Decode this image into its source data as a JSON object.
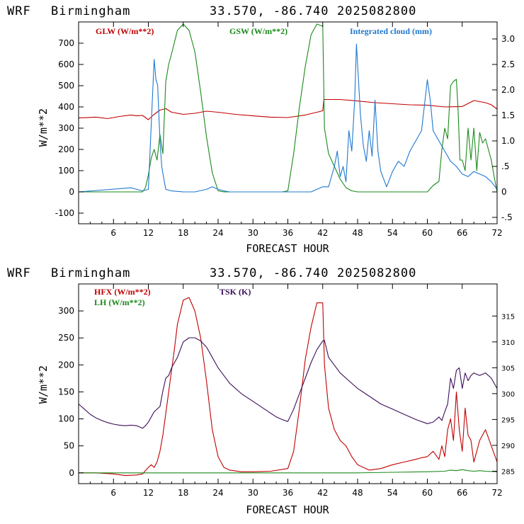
{
  "colors": {
    "red": "#c00000",
    "green": "#1a8a1a",
    "blue": "#1f78d0",
    "purple": "#3b0f5a",
    "axis": "#000000"
  },
  "chart_data": [
    {
      "type": "line",
      "title": {
        "model": "WRF",
        "site": "Birmingham",
        "coords": "33.570, -86.740",
        "run": "2025082800"
      },
      "xlabel": "FORECAST HOUR",
      "ylabel": "W/m**2",
      "x_range": [
        0,
        72
      ],
      "x_ticks": [
        6,
        12,
        18,
        24,
        30,
        36,
        42,
        48,
        54,
        60,
        66,
        72
      ],
      "y_range": [
        -150,
        800
      ],
      "y_ticks": [
        -100,
        0,
        100,
        200,
        300,
        400,
        500,
        600,
        700
      ],
      "y2_range": [
        -0.625,
        3.333
      ],
      "y2_ticks": [
        -0.5,
        0,
        0.5,
        1.0,
        1.5,
        2.0,
        2.5,
        3.0
      ],
      "y2_tick_labels": [
        "-.5",
        "0",
        ".5",
        "1.0",
        "1.5",
        "2.0",
        "2.5",
        "3.0"
      ],
      "legend": [
        "GLW (W/m**2)",
        "GSW (W/m**2)",
        "Integrated cloud (mm)"
      ],
      "series": [
        {
          "name": "GLW (W/m**2)",
          "color_key": "red",
          "axis": "left",
          "x": [
            0,
            3,
            5,
            7,
            9,
            10,
            11,
            12,
            13,
            14,
            15,
            16,
            18,
            20,
            22,
            24,
            27,
            30,
            33,
            36,
            39,
            41,
            42,
            42.2,
            45,
            48,
            51,
            54,
            57,
            60,
            63,
            66,
            68,
            70,
            71,
            72
          ],
          "y": [
            348,
            352,
            345,
            355,
            362,
            358,
            360,
            340,
            365,
            385,
            392,
            375,
            365,
            370,
            380,
            375,
            365,
            358,
            352,
            350,
            362,
            375,
            382,
            435,
            435,
            428,
            420,
            415,
            410,
            408,
            400,
            402,
            430,
            420,
            410,
            390
          ]
        },
        {
          "name": "GSW (W/m**2)",
          "color_key": "green",
          "axis": "left",
          "x": [
            0,
            11,
            11.5,
            12,
            12.5,
            13,
            13.5,
            14,
            14.5,
            15,
            15.5,
            16,
            17,
            18,
            19,
            20,
            21,
            22,
            23,
            24,
            25,
            35,
            36,
            37,
            38,
            39,
            40,
            41,
            42,
            42.3,
            43,
            44,
            45,
            46,
            47,
            48,
            60,
            61,
            62,
            62.5,
            63,
            63.5,
            64,
            64.5,
            65,
            65.3,
            65.6,
            66,
            66.5,
            67,
            67.5,
            68,
            68.5,
            69,
            69.5,
            70,
            70.5,
            71,
            71.5,
            72
          ],
          "y": [
            0,
            0,
            20,
            80,
            160,
            200,
            150,
            270,
            180,
            520,
            600,
            650,
            760,
            790,
            760,
            660,
            470,
            260,
            90,
            5,
            0,
            0,
            5,
            180,
            400,
            590,
            740,
            790,
            780,
            300,
            180,
            120,
            60,
            20,
            5,
            0,
            0,
            30,
            50,
            200,
            300,
            250,
            500,
            520,
            530,
            380,
            150,
            150,
            100,
            300,
            150,
            300,
            100,
            280,
            230,
            250,
            200,
            150,
            70,
            0
          ]
        },
        {
          "name": "Integrated cloud (mm)",
          "color_key": "blue",
          "axis": "right",
          "x": [
            0,
            9,
            10,
            11,
            12,
            13,
            13.3,
            13.6,
            14,
            14.3,
            14.6,
            15,
            16,
            18,
            20,
            22,
            23,
            24,
            25,
            26,
            35,
            40,
            42,
            43,
            44,
            44.5,
            45,
            45.5,
            46,
            46.5,
            47,
            47.5,
            47.8,
            48,
            48.5,
            49,
            49.5,
            50,
            50.5,
            51,
            51.5,
            52,
            53,
            54,
            55,
            56,
            57,
            58,
            59,
            60,
            60.5,
            61,
            62,
            63,
            64,
            65,
            66,
            67,
            68,
            69,
            70,
            71,
            72
          ],
          "y": [
            0,
            0.08,
            0.05,
            0.02,
            0.05,
            2.6,
            2.2,
            2.1,
            1.0,
            0.5,
            0.3,
            0.05,
            0.02,
            0.0,
            0.0,
            0.05,
            0.1,
            0.05,
            0.02,
            0.0,
            0.0,
            0.0,
            0.1,
            0.1,
            0.5,
            0.8,
            0.3,
            0.5,
            0.2,
            1.2,
            0.8,
            1.8,
            2.9,
            2.5,
            1.5,
            0.9,
            0.6,
            1.2,
            0.7,
            1.8,
            0.8,
            0.4,
            0.1,
            0.4,
            0.6,
            0.5,
            0.8,
            1.0,
            1.2,
            2.2,
            1.8,
            1.2,
            1.0,
            0.8,
            0.6,
            0.5,
            0.35,
            0.3,
            0.4,
            0.35,
            0.3,
            0.2,
            0.05
          ]
        }
      ]
    },
    {
      "type": "line",
      "title": {
        "model": "WRF",
        "site": "Birmingham",
        "coords": "33.570, -86.740",
        "run": "2025082800"
      },
      "xlabel": "FORECAST HOUR",
      "ylabel": "W/m**2",
      "x_range": [
        0,
        72
      ],
      "x_ticks": [
        6,
        12,
        18,
        24,
        30,
        36,
        42,
        48,
        54,
        60,
        66,
        72
      ],
      "y_range": [
        -20,
        350
      ],
      "y_ticks": [
        0,
        50,
        100,
        150,
        200,
        250,
        300
      ],
      "y2_range": [
        282.6,
        321.2
      ],
      "y2_ticks": [
        285,
        290,
        295,
        300,
        305,
        310,
        315
      ],
      "legend": [
        "HFX (W/m**2)",
        "LH  (W/m**2)",
        "TSK (K)"
      ],
      "series": [
        {
          "name": "HFX (W/m**2)",
          "color_key": "red",
          "axis": "left",
          "x": [
            0,
            3,
            6,
            8,
            10,
            11,
            12,
            12.5,
            13,
            13.5,
            14,
            14.5,
            15,
            15.5,
            16,
            16.5,
            17,
            18,
            19,
            20,
            21,
            22,
            23,
            24,
            25,
            26,
            28,
            30,
            33,
            36,
            37,
            38,
            39,
            40,
            41,
            42,
            42.3,
            43,
            44,
            45,
            46,
            47,
            48,
            49,
            50,
            52,
            54,
            56,
            58,
            59,
            60,
            61,
            62,
            62.5,
            63,
            63.5,
            64,
            64.5,
            65,
            65.5,
            66,
            66.5,
            67,
            67.5,
            68,
            69,
            70,
            71,
            72
          ],
          "y": [
            0,
            0,
            -2,
            -5,
            -4,
            -2,
            10,
            15,
            10,
            20,
            40,
            70,
            110,
            150,
            190,
            230,
            275,
            320,
            325,
            300,
            250,
            170,
            80,
            30,
            10,
            5,
            2,
            2,
            3,
            8,
            40,
            120,
            210,
            270,
            315,
            315,
            200,
            120,
            80,
            60,
            50,
            30,
            15,
            10,
            5,
            8,
            15,
            20,
            25,
            28,
            30,
            40,
            25,
            50,
            30,
            80,
            100,
            60,
            150,
            80,
            40,
            120,
            70,
            60,
            20,
            60,
            80,
            50,
            20
          ]
        },
        {
          "name": "LH  (W/m**2)",
          "color_key": "green",
          "axis": "left",
          "x": [
            0,
            12,
            18,
            24,
            30,
            36,
            42,
            48,
            54,
            60,
            63,
            64,
            65,
            66,
            67,
            68,
            69,
            70,
            72
          ],
          "y": [
            0,
            0,
            0,
            0,
            0,
            0,
            0,
            0,
            1,
            2,
            3,
            5,
            4,
            6,
            4,
            3,
            4,
            3,
            2
          ]
        },
        {
          "name": "TSK (K)",
          "color_key": "purple",
          "axis": "right",
          "x": [
            0,
            1,
            2,
            3,
            4,
            5,
            6,
            7,
            8,
            9,
            10,
            11,
            11.5,
            12,
            12.5,
            13,
            14,
            14.5,
            15,
            15.5,
            16,
            17,
            18,
            19,
            20,
            21,
            22,
            23,
            24,
            26,
            28,
            30,
            32,
            34,
            35,
            36,
            37,
            38,
            39,
            40,
            41,
            42,
            42.3,
            43,
            44,
            45,
            46,
            48,
            50,
            52,
            54,
            56,
            58,
            60,
            61,
            62,
            62.5,
            63,
            63.5,
            64,
            64.5,
            65,
            65.5,
            66,
            66.5,
            67,
            67.5,
            68,
            69,
            70,
            71,
            72
          ],
          "y": [
            298.0,
            297.0,
            296.0,
            295.3,
            294.8,
            294.4,
            294.1,
            293.9,
            293.8,
            293.9,
            293.8,
            293.3,
            293.8,
            294.5,
            295.5,
            296.5,
            297.5,
            300.5,
            303.0,
            303.5,
            305.0,
            307.0,
            310.0,
            310.8,
            310.8,
            310.2,
            309.0,
            307.0,
            305.0,
            302.0,
            300.0,
            298.5,
            297.0,
            295.5,
            295.0,
            294.6,
            297.0,
            300.0,
            303.0,
            306.0,
            308.5,
            310.2,
            310.3,
            307.0,
            305.5,
            304.0,
            303.0,
            301.0,
            299.5,
            298.0,
            297.0,
            296.0,
            295.0,
            294.2,
            294.5,
            295.5,
            294.8,
            296.5,
            298.0,
            303.0,
            301.0,
            304.5,
            305.0,
            301.0,
            304.0,
            302.5,
            303.5,
            304.0,
            303.5,
            304.0,
            303.0,
            301.0
          ]
        }
      ]
    }
  ]
}
